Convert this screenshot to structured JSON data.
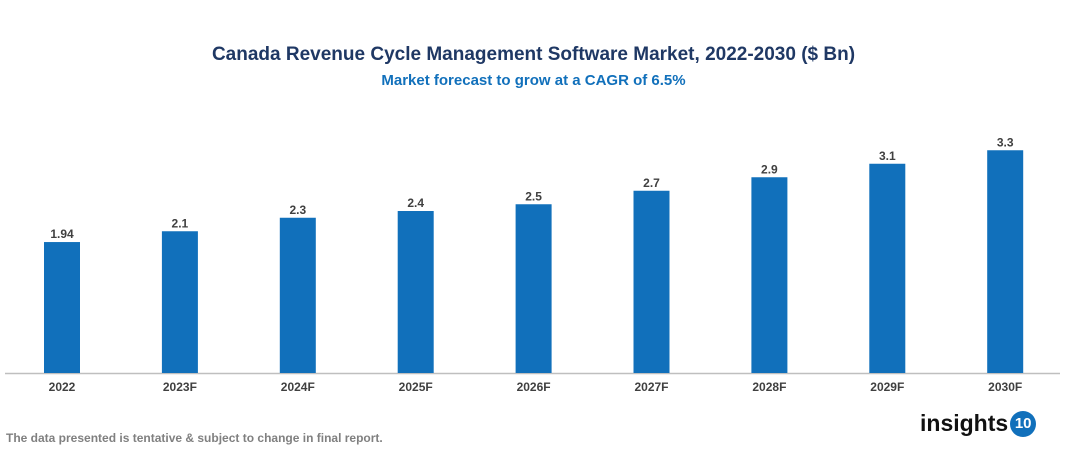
{
  "chart_data": {
    "type": "bar",
    "title": "Canada Revenue Cycle Management Software Market, 2022-2030 ($ Bn)",
    "subtitle": "Market forecast to grow at a CAGR of 6.5%",
    "categories": [
      "2022",
      "2023F",
      "2024F",
      "2025F",
      "2026F",
      "2027F",
      "2028F",
      "2029F",
      "2030F"
    ],
    "values": [
      1.94,
      2.1,
      2.3,
      2.4,
      2.5,
      2.7,
      2.9,
      3.1,
      3.3
    ],
    "data_labels": [
      "1.94",
      "2.1",
      "2.3",
      "2.4",
      "2.5",
      "2.7",
      "2.9",
      "3.1",
      "3.3"
    ],
    "xlabel": "",
    "ylabel": "",
    "ylim": [
      0,
      4
    ],
    "grid": false,
    "bar_color": "#1170bb"
  },
  "footnote": "The data presented is tentative & subject to change in final report.",
  "logo": {
    "text": "insights",
    "badge": "10"
  }
}
